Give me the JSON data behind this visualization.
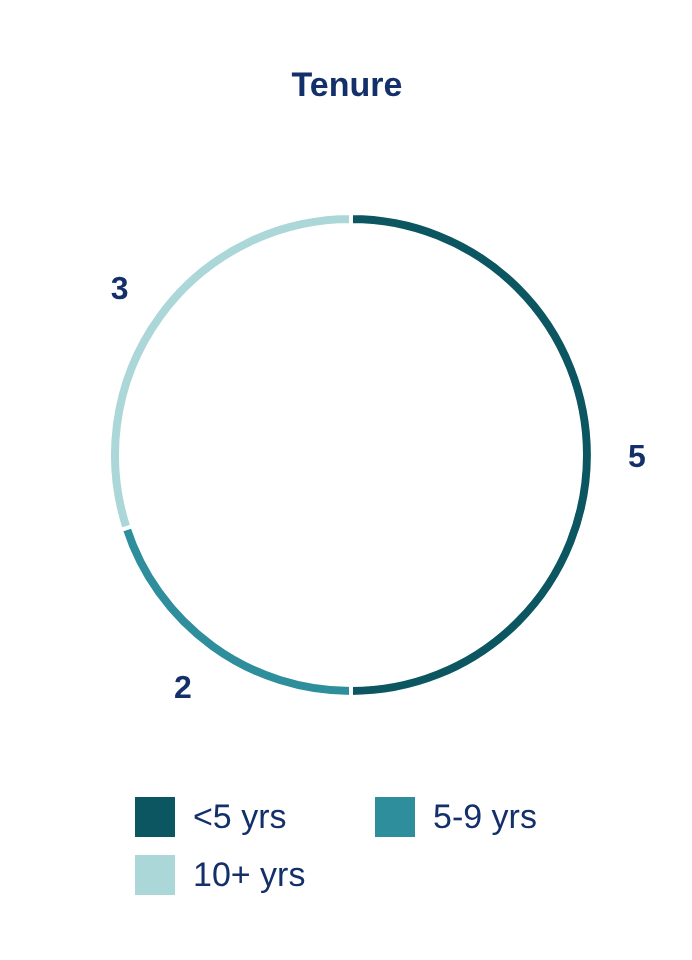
{
  "chart_data": {
    "type": "donut",
    "title": "Tenure",
    "categories": [
      "<5 yrs",
      "5-9 yrs",
      "10+ yrs"
    ],
    "values": [
      5,
      2,
      3
    ],
    "colors": [
      "#0b5660",
      "#2f8e9c",
      "#abd7d9"
    ],
    "data_labels": true,
    "legend": "bottom"
  }
}
